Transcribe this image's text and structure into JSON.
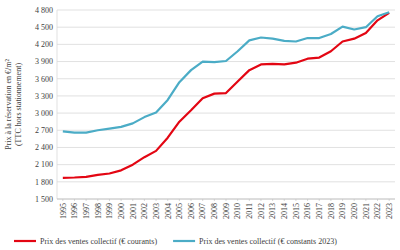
{
  "chart_data": {
    "type": "line",
    "y_label": [
      "Prix à la réservation en €/m²",
      "(TTC hors stationnement)"
    ],
    "categories": [
      "1995",
      "1996",
      "1997",
      "1998",
      "1999",
      "2000",
      "2001",
      "2002",
      "2003",
      "2004",
      "2005",
      "2006",
      "2007",
      "2008",
      "2009",
      "2010",
      "2011",
      "2012",
      "2013",
      "2014",
      "2015",
      "2016",
      "2017",
      "2018",
      "2019",
      "2020",
      "2021",
      "2022",
      "2023"
    ],
    "series": [
      {
        "name": "Prix des ventes collectif (€ courants)",
        "color": "#e30613",
        "values": [
          1870,
          1875,
          1885,
          1920,
          1945,
          2000,
          2100,
          2230,
          2340,
          2570,
          2850,
          3050,
          3260,
          3340,
          3350,
          3550,
          3750,
          3850,
          3860,
          3850,
          3880,
          3950,
          3970,
          4080,
          4250,
          4300,
          4400,
          4620,
          4750
        ]
      },
      {
        "name": "Prix des ventes collectif (€ constants 2023)",
        "color": "#4bacc6",
        "values": [
          2680,
          2660,
          2660,
          2700,
          2730,
          2760,
          2820,
          2930,
          3010,
          3230,
          3540,
          3750,
          3900,
          3890,
          3910,
          4080,
          4270,
          4320,
          4300,
          4260,
          4250,
          4310,
          4310,
          4380,
          4510,
          4460,
          4500,
          4690,
          4760
        ]
      }
    ],
    "ylim": [
      1500,
      4800
    ],
    "yticks": [
      {
        "value": 1500,
        "label": "1 500"
      },
      {
        "value": 1800,
        "label": "1 800"
      },
      {
        "value": 2100,
        "label": "2 100"
      },
      {
        "value": 2400,
        "label": "2 400"
      },
      {
        "value": 2700,
        "label": "2 700"
      },
      {
        "value": 3000,
        "label": "3 000"
      },
      {
        "value": 3300,
        "label": "3 300"
      },
      {
        "value": 3600,
        "label": "3 600"
      },
      {
        "value": 3900,
        "label": "3 900"
      },
      {
        "value": 4200,
        "label": "4 200"
      },
      {
        "value": 4500,
        "label": "4 500"
      },
      {
        "value": 4800,
        "label": "4 800"
      }
    ],
    "grid": true,
    "legend": "bottom"
  }
}
